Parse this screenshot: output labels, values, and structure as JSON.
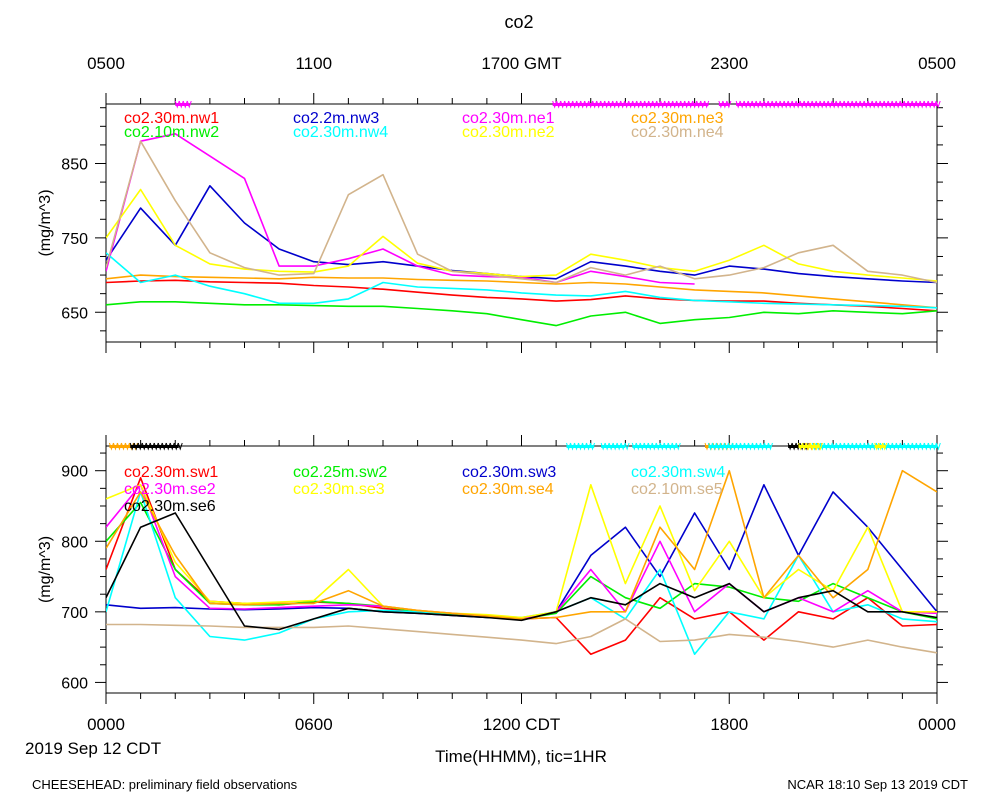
{
  "title": "co2",
  "top_axis": {
    "ticks": [
      "0500",
      "1100",
      "1700 GMT",
      "2300",
      "0500"
    ]
  },
  "x_axis": {
    "ticks": [
      "0000",
      "0600",
      "1200 CDT",
      "1800",
      "0000"
    ],
    "label": "Time(HHMM), tic=1HR",
    "date": "2019 Sep 12 CDT",
    "range_hours": [
      0,
      24
    ]
  },
  "footer": {
    "left": "CHEESEHEAD: preliminary field observations",
    "right": "NCAR 18:10 Sep 13 2019 CDT"
  },
  "chart_data": [
    {
      "type": "line",
      "panel": "top",
      "ylabel": "(mg/m^3)",
      "ylim": [
        610,
        930
      ],
      "yticks": [
        650,
        750,
        850
      ],
      "x_hours": [
        0,
        1,
        2,
        3,
        4,
        5,
        6,
        7,
        8,
        9,
        10,
        11,
        12,
        13,
        14,
        15,
        16,
        17,
        18,
        19,
        20,
        21,
        22,
        23,
        24
      ],
      "flag_markers": [
        {
          "name": "co2.30m.ne1",
          "color": "#ff00ff",
          "ranges": [
            [
              2.0,
              2.4
            ],
            [
              12.9,
              17.4
            ],
            [
              17.7,
              18.0
            ],
            [
              18.2,
              24.0
            ]
          ]
        }
      ],
      "series": [
        {
          "name": "co2.30m.nw1",
          "color": "#ff0000",
          "values": [
            690,
            692,
            693,
            691,
            690,
            689,
            686,
            684,
            681,
            677,
            673,
            670,
            668,
            665,
            667,
            672,
            668,
            666,
            665,
            665,
            662,
            660,
            658,
            655,
            652
          ]
        },
        {
          "name": "co2.2m.nw3",
          "color": "#0000cc",
          "values": [
            720,
            790,
            740,
            820,
            770,
            735,
            718,
            714,
            718,
            712,
            706,
            702,
            698,
            695,
            718,
            712,
            705,
            700,
            712,
            708,
            702,
            698,
            695,
            692,
            690
          ]
        },
        {
          "name": "co2.30m.ne1",
          "color": "#ff00ff",
          "values": [
            705,
            880,
            890,
            860,
            830,
            712,
            712,
            722,
            735,
            712,
            700,
            698,
            697,
            690,
            705,
            698,
            690,
            688,
            null,
            null,
            null,
            null,
            null,
            null,
            null
          ]
        },
        {
          "name": "co2.30m.ne3",
          "color": "#ffa500",
          "values": [
            695,
            700,
            698,
            697,
            696,
            695,
            697,
            696,
            696,
            694,
            693,
            692,
            690,
            688,
            690,
            688,
            684,
            680,
            678,
            676,
            672,
            668,
            664,
            660,
            656
          ]
        },
        {
          "name": "co2.10m.nw2",
          "color": "#00ee00",
          "values": [
            660,
            664,
            664,
            662,
            660,
            660,
            659,
            658,
            658,
            655,
            652,
            648,
            640,
            632,
            645,
            650,
            635,
            640,
            643,
            650,
            648,
            652,
            650,
            648,
            652
          ]
        },
        {
          "name": "co2.30m.nw4",
          "color": "#00ffff",
          "values": [
            730,
            690,
            700,
            685,
            675,
            662,
            662,
            668,
            690,
            684,
            682,
            680,
            676,
            673,
            672,
            678,
            670,
            666,
            664,
            662,
            661,
            660,
            659,
            658,
            656
          ]
        },
        {
          "name": "co2.30m.ne2",
          "color": "#ffff00",
          "values": [
            750,
            815,
            740,
            715,
            708,
            705,
            704,
            712,
            752,
            716,
            705,
            702,
            698,
            700,
            728,
            720,
            710,
            705,
            720,
            740,
            715,
            705,
            700,
            696,
            692
          ]
        },
        {
          "name": "co2.30m.ne4",
          "color": "#d2b48c",
          "values": [
            710,
            880,
            800,
            730,
            710,
            700,
            702,
            808,
            835,
            728,
            705,
            700,
            695,
            690,
            710,
            700,
            712,
            695,
            700,
            710,
            730,
            740,
            705,
            700,
            690
          ]
        }
      ]
    },
    {
      "type": "line",
      "panel": "bottom",
      "ylabel": "(mg/m^3)",
      "ylim": [
        585,
        935
      ],
      "yticks": [
        600,
        700,
        800,
        900
      ],
      "x_hours": [
        0,
        1,
        2,
        3,
        4,
        5,
        6,
        7,
        8,
        9,
        10,
        11,
        12,
        13,
        14,
        15,
        16,
        17,
        18,
        19,
        20,
        21,
        22,
        23,
        24
      ],
      "flag_markers": [
        {
          "name": "co2.30m.se4",
          "color": "#ffa500",
          "ranges": [
            [
              0.1,
              0.8
            ],
            [
              17.3,
              18.0
            ],
            [
              20.2,
              20.6
            ]
          ]
        },
        {
          "name": "co2.30m.se6",
          "color": "#000000",
          "ranges": [
            [
              0.7,
              2.1
            ],
            [
              19.7,
              20.2
            ]
          ]
        },
        {
          "name": "co2.30m.sw4",
          "color": "#00ffff",
          "ranges": [
            [
              13.3,
              14.1
            ],
            [
              14.3,
              15.0
            ],
            [
              15.2,
              16.5
            ],
            [
              17.4,
              19.2
            ],
            [
              20.4,
              24.0
            ]
          ]
        },
        {
          "name": "co2.30m.se3",
          "color": "#ffff00",
          "ranges": [
            [
              20.0,
              20.6
            ],
            [
              22.2,
              22.5
            ]
          ]
        }
      ],
      "series": [
        {
          "name": "co2.30m.sw1",
          "color": "#ff0000",
          "values": [
            760,
            890,
            760,
            715,
            712,
            710,
            714,
            712,
            705,
            700,
            696,
            694,
            690,
            692,
            640,
            660,
            720,
            690,
            700,
            660,
            700,
            690,
            720,
            680,
            682
          ]
        },
        {
          "name": "co2.25m.sw2",
          "color": "#00ee00",
          "values": [
            800,
            855,
            760,
            712,
            710,
            710,
            715,
            712,
            708,
            700,
            696,
            692,
            690,
            698,
            750,
            720,
            705,
            740,
            735,
            720,
            715,
            740,
            720,
            700,
            690
          ]
        },
        {
          "name": "co2.30m.sw3",
          "color": "#0000cc",
          "values": [
            710,
            705,
            706,
            704,
            703,
            704,
            706,
            705,
            700,
            698,
            695,
            692,
            690,
            700,
            780,
            820,
            750,
            840,
            760,
            880,
            780,
            870,
            820,
            760,
            700
          ]
        },
        {
          "name": "co2.30m.sw4",
          "color": "#00ffff",
          "values": [
            700,
            870,
            720,
            665,
            660,
            670,
            690,
            700,
            702,
            700,
            698,
            695,
            692,
            700,
            720,
            690,
            760,
            640,
            700,
            690,
            780,
            700,
            710,
            690,
            686
          ]
        },
        {
          "name": "co2.30m.se2",
          "color": "#ff00ff",
          "values": [
            820,
            880,
            750,
            705,
            704,
            706,
            708,
            710,
            708,
            702,
            698,
            694,
            690,
            700,
            760,
            700,
            800,
            700,
            740,
            700,
            720,
            700,
            730,
            700,
            698
          ]
        },
        {
          "name": "co2.30m.se3",
          "color": "#ffff00",
          "values": [
            860,
            880,
            770,
            715,
            712,
            714,
            716,
            760,
            708,
            702,
            698,
            696,
            692,
            700,
            880,
            740,
            850,
            730,
            800,
            720,
            760,
            730,
            820,
            700,
            700
          ]
        },
        {
          "name": "co2.30m.se4",
          "color": "#ffa500",
          "values": [
            790,
            870,
            780,
            712,
            710,
            712,
            712,
            730,
            708,
            702,
            698,
            694,
            690,
            692,
            700,
            700,
            820,
            760,
            900,
            720,
            780,
            720,
            760,
            900,
            870
          ]
        },
        {
          "name": "co2.10m.se5",
          "color": "#d2b48c",
          "values": [
            682,
            682,
            681,
            680,
            678,
            678,
            678,
            680,
            676,
            672,
            668,
            664,
            660,
            655,
            665,
            690,
            658,
            660,
            668,
            664,
            658,
            650,
            660,
            650,
            642
          ]
        },
        {
          "name": "co2.30m.se6",
          "color": "#000000",
          "values": [
            720,
            820,
            840,
            760,
            680,
            675,
            690,
            705,
            700,
            698,
            695,
            692,
            688,
            700,
            720,
            710,
            740,
            720,
            740,
            700,
            720,
            730,
            700,
            700,
            692
          ]
        }
      ]
    }
  ]
}
